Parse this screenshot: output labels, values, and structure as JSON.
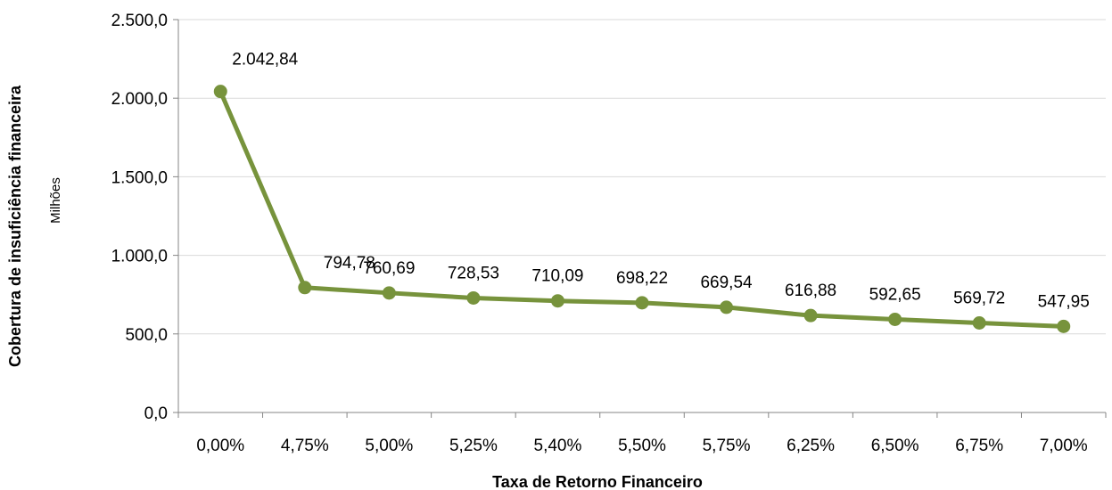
{
  "chart_data": {
    "type": "line",
    "title": "",
    "xlabel": "Taxa de Retorno Financeiro",
    "ylabel": "Cobertura de insuficiência financeira",
    "yunit_label": "Milhões",
    "categories": [
      "0,00%",
      "4,75%",
      "5,00%",
      "5,25%",
      "5,40%",
      "5,50%",
      "5,75%",
      "6,25%",
      "6,50%",
      "6,75%",
      "7,00%"
    ],
    "series": [
      {
        "values": [
          2042.84,
          794.78,
          760.69,
          728.53,
          710.09,
          698.22,
          669.54,
          616.88,
          592.65,
          569.72,
          547.95
        ],
        "data_labels": [
          "2.042,84",
          "794,78",
          "760,69",
          "728,53",
          "710,09",
          "698,22",
          "669,54",
          "616,88",
          "592,65",
          "569,72",
          "547,95"
        ],
        "color": "#77933C"
      }
    ],
    "ylim": [
      0,
      2500
    ],
    "yticks": [
      0,
      500,
      1000,
      1500,
      2000,
      2500
    ],
    "ytick_labels": [
      "0,0",
      "500,0",
      "1.000,0",
      "1.500,0",
      "2.000,0",
      "2.500,0"
    ],
    "grid": true,
    "gridline_color": "#D9D9D9",
    "legend": "none"
  }
}
